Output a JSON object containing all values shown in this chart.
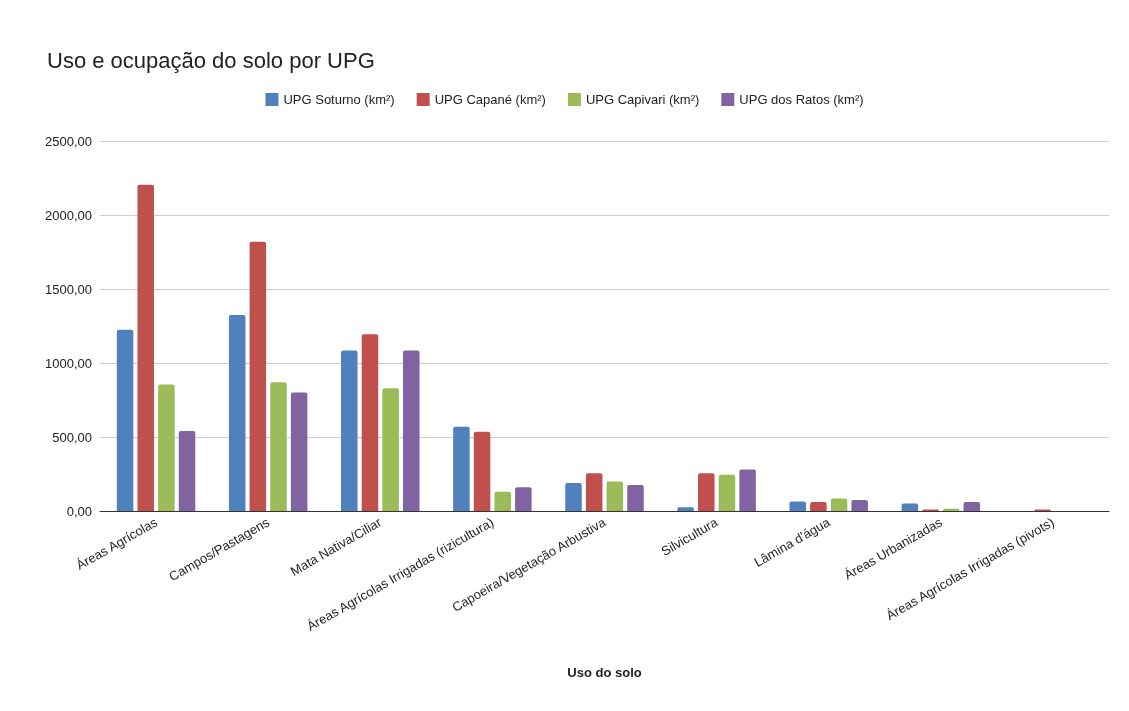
{
  "chart_data": {
    "type": "bar",
    "title": "Uso e ocupação do solo por UPG",
    "xlabel": "Uso do solo",
    "categories": [
      "Áreas Agrícolas",
      "Campos/Pastagens",
      "Mata Nativa/Ciliar",
      "Áreas Agrícolas Irrigadas (rizicultura)",
      "Capoeira/Vegetação Arbustiva",
      "Silvicultura",
      "Lâmina d'água",
      "Áreas Urbanizadas",
      "Áreas Agrícolas Irrigadas (pivots)"
    ],
    "series": [
      {
        "name": "UPG Soturno (km²)",
        "color": "#4f81bd",
        "values": [
          1225,
          1325,
          1085,
          570,
          190,
          25,
          65,
          50,
          0
        ]
      },
      {
        "name": "UPG Capané (km²)",
        "color": "#c0504d",
        "values": [
          2205,
          1820,
          1195,
          535,
          255,
          255,
          60,
          10,
          10
        ]
      },
      {
        "name": "UPG Capivari (km²)",
        "color": "#9bbb59",
        "values": [
          855,
          870,
          830,
          130,
          200,
          245,
          85,
          15,
          0
        ]
      },
      {
        "name": "UPG dos Ratos (km²)",
        "color": "#8064a2",
        "values": [
          540,
          800,
          1085,
          160,
          175,
          280,
          75,
          60,
          0
        ]
      }
    ],
    "ylim": [
      0,
      2500
    ],
    "yticks": [
      {
        "value": 0,
        "label": "0,00"
      },
      {
        "value": 500,
        "label": "500,00"
      },
      {
        "value": 1000,
        "label": "1000,00"
      },
      {
        "value": 1500,
        "label": "1500,00"
      },
      {
        "value": 2000,
        "label": "2000,00"
      },
      {
        "value": 2500,
        "label": "2500,00"
      }
    ],
    "grid": "y",
    "legend": "top"
  }
}
